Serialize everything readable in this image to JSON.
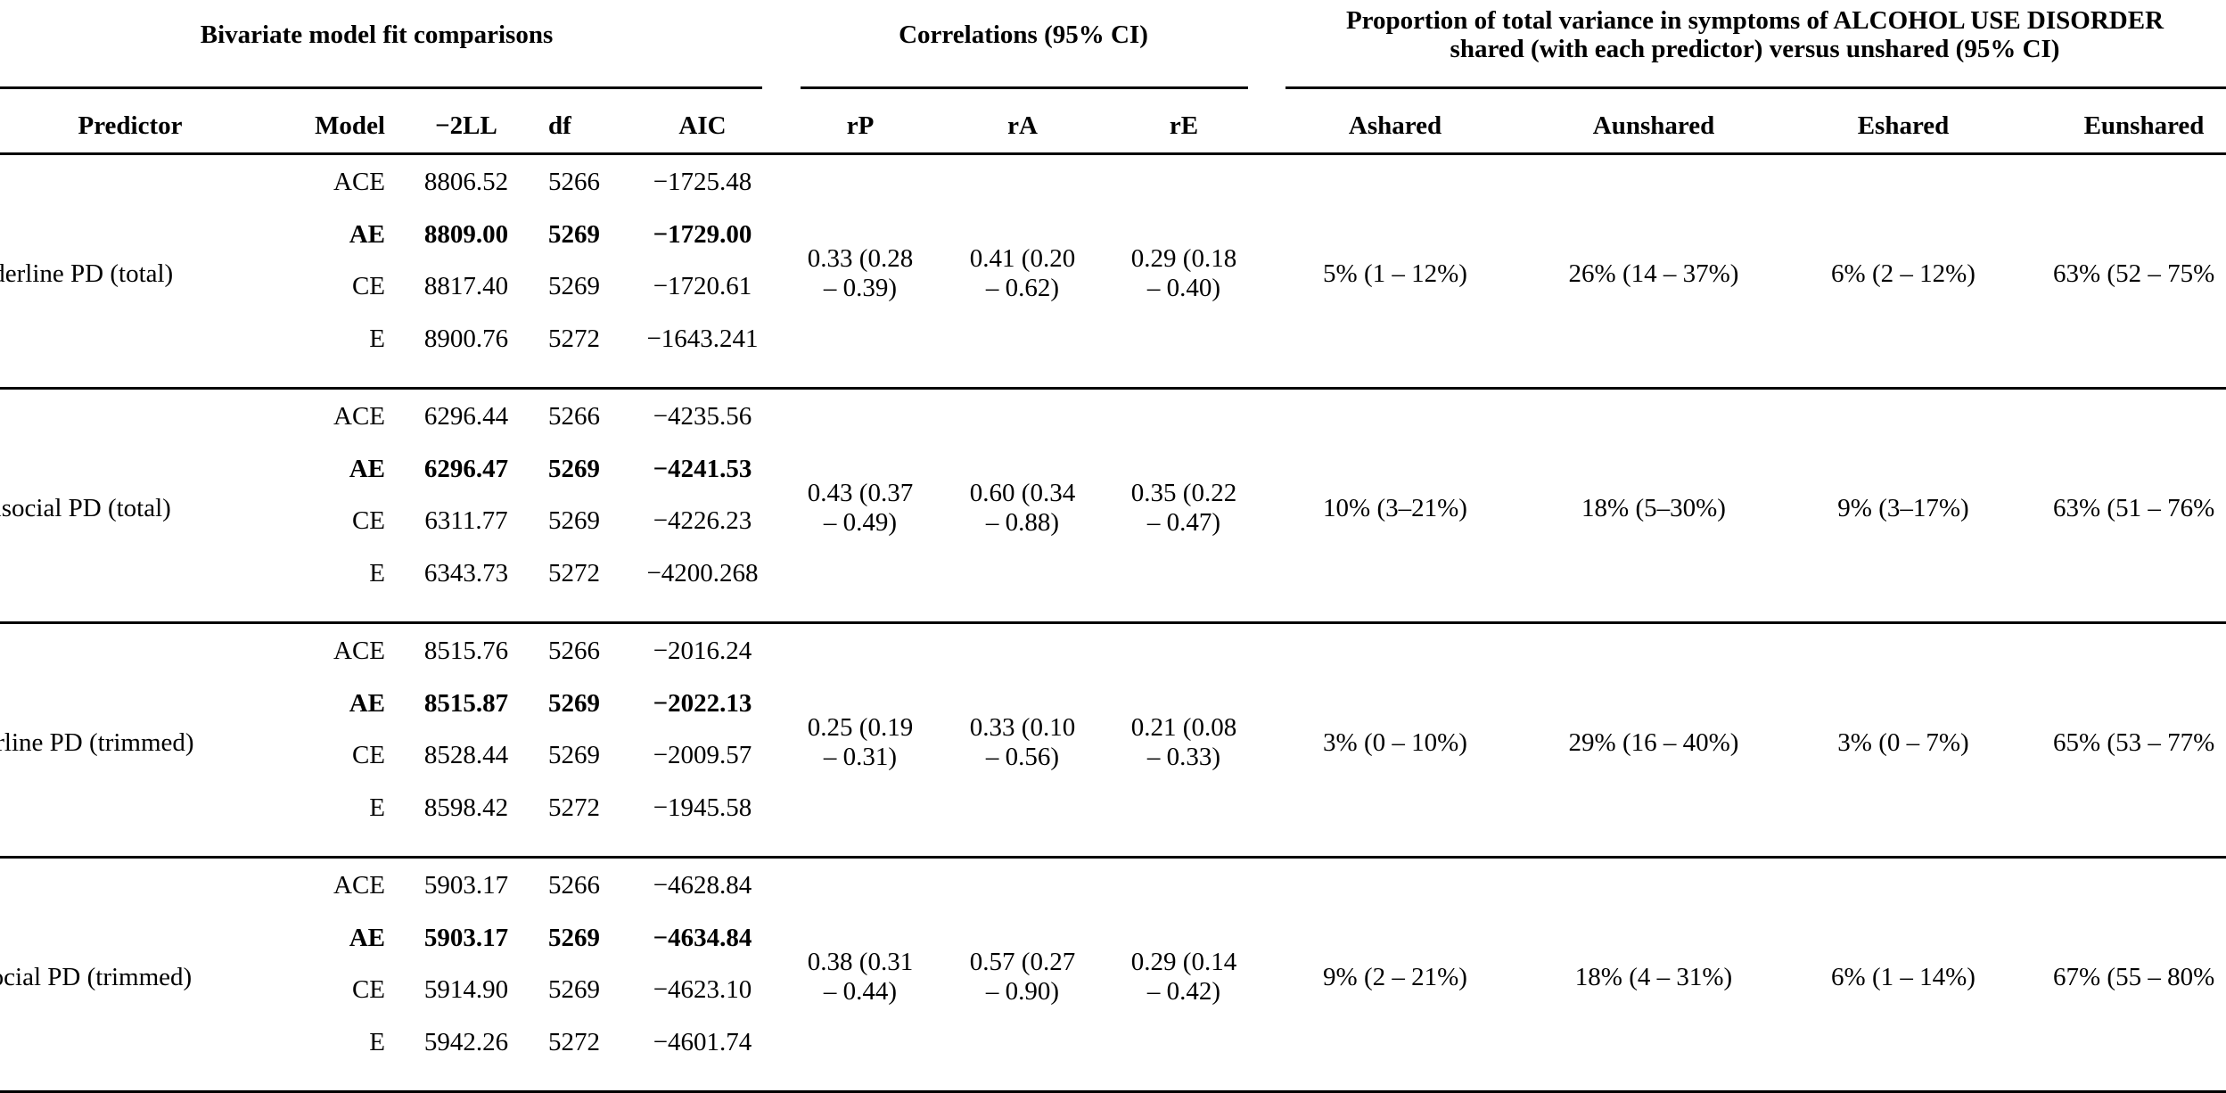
{
  "group_headers": {
    "model_fit": "Bivariate model fit comparisons",
    "correlations": "Correlations (95% CI)",
    "variance_line1": "Proportion of total variance in symptoms of ALCOHOL USE DISORDER",
    "variance_line2": "shared (with each predictor) versus unshared (95% CI)"
  },
  "columns": {
    "predictor": "Predictor",
    "model": "Model",
    "neg2ll": "−2LL",
    "df": "df",
    "aic": "AIC",
    "rp": "rP",
    "ra": "rA",
    "re": "rE",
    "ashared": "Ashared",
    "aunshared": "Aunshared",
    "eshared": "Eshared",
    "eunshared": "Eunshared"
  },
  "groups": [
    {
      "predictor": "Borderline PD (total)",
      "rows": [
        {
          "model": "ACE",
          "neg2ll": "8806.52",
          "df": "5266",
          "aic": "−1725.48"
        },
        {
          "model": "AE",
          "neg2ll": "8809.00",
          "df": "5269",
          "aic": "−1729.00"
        },
        {
          "model": "CE",
          "neg2ll": "8817.40",
          "df": "5269",
          "aic": "−1720.61"
        },
        {
          "model": "E",
          "neg2ll": "8900.76",
          "df": "5272",
          "aic": "−1643.241"
        }
      ],
      "rp": "0.33 (0.28 – 0.39)",
      "ra": "0.41 (0.20 – 0.62)",
      "re": "0.29 (0.18 – 0.40)",
      "ashared": "5% (1 – 12%)",
      "aunshared": "26% (14 – 37%)",
      "eshared": "6% (2 – 12%)",
      "eunshared": "63% (52 – 75%"
    },
    {
      "predictor": "Antisocial PD (total)",
      "rows": [
        {
          "model": "ACE",
          "neg2ll": "6296.44",
          "df": "5266",
          "aic": "−4235.56"
        },
        {
          "model": "AE",
          "neg2ll": "6296.47",
          "df": "5269",
          "aic": "−4241.53"
        },
        {
          "model": "CE",
          "neg2ll": "6311.77",
          "df": "5269",
          "aic": "−4226.23"
        },
        {
          "model": "E",
          "neg2ll": "6343.73",
          "df": "5272",
          "aic": "−4200.268"
        }
      ],
      "rp": "0.43 (0.37 – 0.49)",
      "ra": "0.60 (0.34 – 0.88)",
      "re": "0.35 (0.22 – 0.47)",
      "ashared": "10% (3–21%)",
      "aunshared": "18% (5–30%)",
      "eshared": "9% (3–17%)",
      "eunshared": "63% (51 – 76%"
    },
    {
      "predictor": "Borderline PD (trimmed)",
      "rows": [
        {
          "model": "ACE",
          "neg2ll": "8515.76",
          "df": "5266",
          "aic": "−2016.24"
        },
        {
          "model": "AE",
          "neg2ll": "8515.87",
          "df": "5269",
          "aic": "−2022.13"
        },
        {
          "model": "CE",
          "neg2ll": "8528.44",
          "df": "5269",
          "aic": "−2009.57"
        },
        {
          "model": "E",
          "neg2ll": "8598.42",
          "df": "5272",
          "aic": "−1945.58"
        }
      ],
      "rp": "0.25 (0.19 – 0.31)",
      "ra": "0.33 (0.10 – 0.56)",
      "re": "0.21 (0.08 – 0.33)",
      "ashared": "3% (0 – 10%)",
      "aunshared": "29% (16 – 40%)",
      "eshared": "3% (0 – 7%)",
      "eunshared": "65% (53 – 77%"
    },
    {
      "predictor": "Antisocial PD (trimmed)",
      "rows": [
        {
          "model": "ACE",
          "neg2ll": "5903.17",
          "df": "5266",
          "aic": "−4628.84"
        },
        {
          "model": "AE",
          "neg2ll": "5903.17",
          "df": "5269",
          "aic": "−4634.84"
        },
        {
          "model": "CE",
          "neg2ll": "5914.90",
          "df": "5269",
          "aic": "−4623.10"
        },
        {
          "model": "E",
          "neg2ll": "5942.26",
          "df": "5272",
          "aic": "−4601.74"
        }
      ],
      "rp": "0.38 (0.31 – 0.44)",
      "ra": "0.57 (0.27 – 0.90)",
      "re": "0.29 (0.14 – 0.42)",
      "ashared": "9% (2 – 21%)",
      "aunshared": "18% (4 – 31%)",
      "eshared": "6% (1 – 14%)",
      "eunshared": "67% (55 – 80%"
    }
  ]
}
